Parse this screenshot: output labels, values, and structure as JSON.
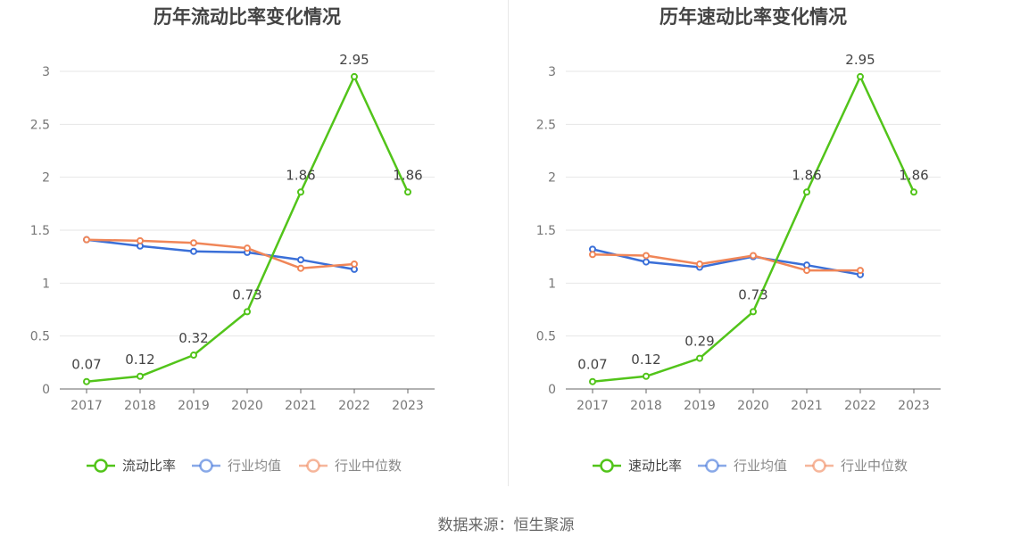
{
  "chart_data": [
    {
      "type": "line",
      "title": "历年流动比率变化情况",
      "categories": [
        "2017",
        "2018",
        "2019",
        "2020",
        "2021",
        "2022",
        "2023"
      ],
      "ylim": [
        0,
        3
      ],
      "yticks": [
        "0",
        "0.5",
        "1",
        "1.5",
        "2",
        "2.5",
        "3"
      ],
      "series": [
        {
          "name": "流动比率",
          "color": "#52c41a",
          "values": [
            0.07,
            0.12,
            0.32,
            0.73,
            1.86,
            2.95,
            1.86
          ],
          "labels": [
            "0.07",
            "0.12",
            "0.32",
            "0.73",
            "1.86",
            "2.95",
            "1.86"
          ]
        },
        {
          "name": "行业均值",
          "color": "#3a6fd8",
          "values": [
            1.41,
            1.35,
            1.3,
            1.29,
            1.22,
            1.13,
            null
          ]
        },
        {
          "name": "行业中位数",
          "color": "#f08658",
          "values": [
            1.41,
            1.4,
            1.38,
            1.33,
            1.14,
            1.18,
            null
          ]
        }
      ],
      "legend": "bottom"
    },
    {
      "type": "line",
      "title": "历年速动比率变化情况",
      "categories": [
        "2017",
        "2018",
        "2019",
        "2020",
        "2021",
        "2022",
        "2023"
      ],
      "ylim": [
        0,
        3
      ],
      "yticks": [
        "0",
        "0.5",
        "1",
        "1.5",
        "2",
        "2.5",
        "3"
      ],
      "series": [
        {
          "name": "速动比率",
          "color": "#52c41a",
          "values": [
            0.07,
            0.12,
            0.29,
            0.73,
            1.86,
            2.95,
            1.86
          ],
          "labels": [
            "0.07",
            "0.12",
            "0.29",
            "0.73",
            "1.86",
            "2.95",
            "1.86"
          ]
        },
        {
          "name": "行业均值",
          "color": "#3a6fd8",
          "values": [
            1.32,
            1.2,
            1.15,
            1.25,
            1.17,
            1.08,
            null
          ]
        },
        {
          "name": "行业中位数",
          "color": "#f08658",
          "values": [
            1.27,
            1.26,
            1.18,
            1.26,
            1.12,
            1.12,
            null
          ]
        }
      ],
      "legend": "bottom"
    }
  ],
  "source": "数据来源：恒生聚源"
}
